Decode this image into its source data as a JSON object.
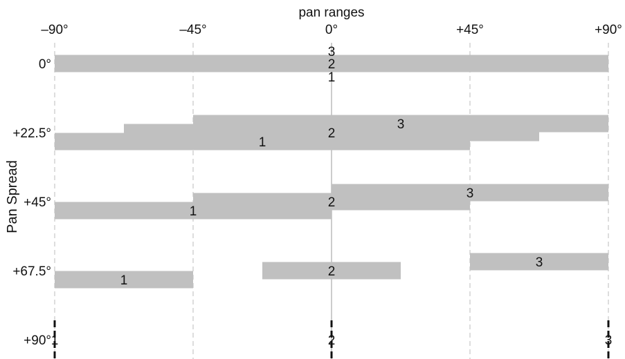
{
  "chart_data": {
    "type": "bar",
    "title": "pan ranges",
    "xlabel": "",
    "ylabel": "Pan Spread",
    "xlim": [
      -90,
      90
    ],
    "x_ticks": [
      {
        "value": -90,
        "label": "–90°"
      },
      {
        "value": -45,
        "label": "–45°"
      },
      {
        "value": 0,
        "label": "0°"
      },
      {
        "value": 45,
        "label": "+45°"
      },
      {
        "value": 90,
        "label": "+90°"
      }
    ],
    "rows": [
      {
        "label": "0°",
        "bars": [
          {
            "name": "1",
            "start": -90,
            "end": 90
          },
          {
            "name": "2",
            "start": -90,
            "end": 90
          },
          {
            "name": "3",
            "start": -90,
            "end": 90
          }
        ]
      },
      {
        "label": "+22.5°",
        "bars": [
          {
            "name": "1",
            "start": -90,
            "end": 45
          },
          {
            "name": "2",
            "start": -67.5,
            "end": 67.5
          },
          {
            "name": "3",
            "start": -45,
            "end": 90
          }
        ]
      },
      {
        "label": "+45°",
        "bars": [
          {
            "name": "1",
            "start": -90,
            "end": 0
          },
          {
            "name": "2",
            "start": -45,
            "end": 45
          },
          {
            "name": "3",
            "start": 0,
            "end": 90
          }
        ]
      },
      {
        "label": "+67.5°",
        "bars": [
          {
            "name": "1",
            "start": -90,
            "end": -45
          },
          {
            "name": "2",
            "start": -22.5,
            "end": 22.5
          },
          {
            "name": "3",
            "start": 45,
            "end": 90
          }
        ]
      },
      {
        "label": "+90°",
        "points": [
          {
            "name": "1",
            "value": -90
          },
          {
            "name": "2",
            "value": 0
          },
          {
            "name": "3",
            "value": 90
          }
        ]
      }
    ],
    "grid": true,
    "legend": "none",
    "colors": {
      "bar": "#c0c0c0",
      "grid": "#bbbbbb",
      "center_line": "#999999",
      "point_marker": "#111111"
    }
  }
}
